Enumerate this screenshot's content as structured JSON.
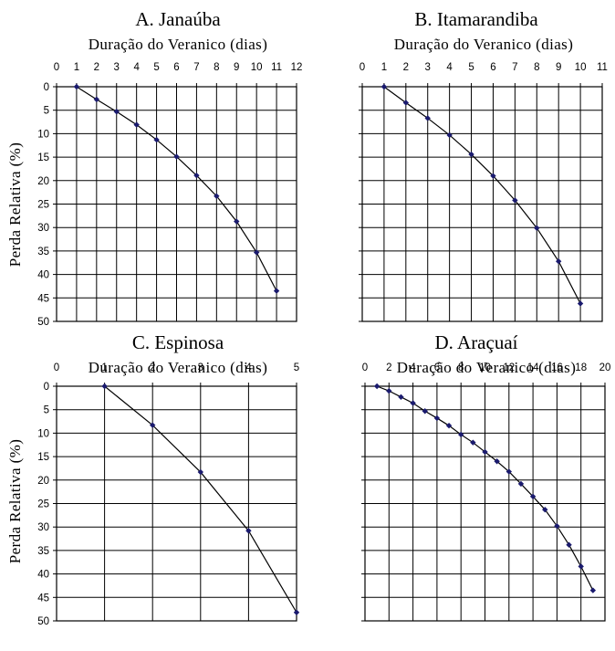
{
  "chart_data": [
    {
      "type": "line",
      "title": "A. Janaúba",
      "xlabel": "Duração do Veranico (dias)",
      "ylabel": "Perda Relativa (%)",
      "xlim": [
        0,
        12
      ],
      "xticks": [
        0,
        1,
        2,
        3,
        4,
        5,
        6,
        7,
        8,
        9,
        10,
        11,
        12
      ],
      "ylim": [
        0,
        50
      ],
      "yticks": [
        0,
        5,
        10,
        15,
        20,
        25,
        30,
        35,
        40,
        45,
        50
      ],
      "y_inverted": true,
      "grid": true,
      "x_axis_position": "top",
      "series": [
        {
          "x": [
            1,
            2,
            3,
            4,
            5,
            6,
            7,
            8,
            9,
            10,
            11
          ],
          "y": [
            0,
            2.7,
            5.3,
            8.1,
            11.3,
            14.9,
            18.9,
            23.3,
            28.7,
            35.3,
            43.5
          ]
        }
      ]
    },
    {
      "type": "line",
      "title": "B. Itamarandiba",
      "xlabel": "Duração do Veranico (dias)",
      "ylabel": "",
      "xlim": [
        0,
        11
      ],
      "xticks": [
        0,
        1,
        2,
        3,
        4,
        5,
        6,
        7,
        8,
        9,
        10,
        11
      ],
      "ylim": [
        0,
        50
      ],
      "yticks": [],
      "y_inverted": true,
      "grid": true,
      "x_axis_position": "top",
      "series": [
        {
          "x": [
            1,
            2,
            3,
            4,
            5,
            6,
            7,
            8,
            9,
            10
          ],
          "y": [
            0,
            3.4,
            6.7,
            10.3,
            14.4,
            19.0,
            24.2,
            30.1,
            37.2,
            46.2
          ]
        }
      ]
    },
    {
      "type": "line",
      "title": "C. Espinosa",
      "xlabel": "Duração do Veranico (dias)",
      "ylabel": "Perda Relativa (%)",
      "xlim": [
        0,
        5
      ],
      "xticks": [
        0,
        1,
        2,
        3,
        4,
        5
      ],
      "ylim": [
        0,
        50
      ],
      "yticks": [
        0,
        5,
        10,
        15,
        20,
        25,
        30,
        35,
        40,
        45,
        50
      ],
      "y_inverted": true,
      "grid": true,
      "x_axis_position": "top",
      "series": [
        {
          "x": [
            1,
            2,
            3,
            4,
            5
          ],
          "y": [
            0,
            8.3,
            18.3,
            30.8,
            48.2
          ]
        }
      ]
    },
    {
      "type": "line",
      "title": "D. Araçuaí",
      "xlabel": "Duração do Veranico (dias)",
      "ylabel": "",
      "xlim": [
        0,
        20
      ],
      "xticks": [
        0,
        2,
        4,
        6,
        8,
        10,
        12,
        14,
        16,
        18,
        20
      ],
      "ylim": [
        0,
        50
      ],
      "yticks": [],
      "y_inverted": true,
      "grid": true,
      "x_axis_position": "top",
      "series": [
        {
          "x": [
            1,
            2,
            3,
            4,
            5,
            6,
            7,
            8,
            9,
            10,
            11,
            12,
            13,
            14,
            15,
            16,
            17,
            18,
            19
          ],
          "y": [
            0,
            1.0,
            2.3,
            3.6,
            5.3,
            6.8,
            8.4,
            10.3,
            12.0,
            14.0,
            16.0,
            18.2,
            20.8,
            23.5,
            26.3,
            29.8,
            33.8,
            38.4,
            43.5
          ]
        }
      ]
    }
  ],
  "colors": {
    "marker": "#1a1a6e",
    "line": "#000000",
    "grid": "#000000"
  }
}
